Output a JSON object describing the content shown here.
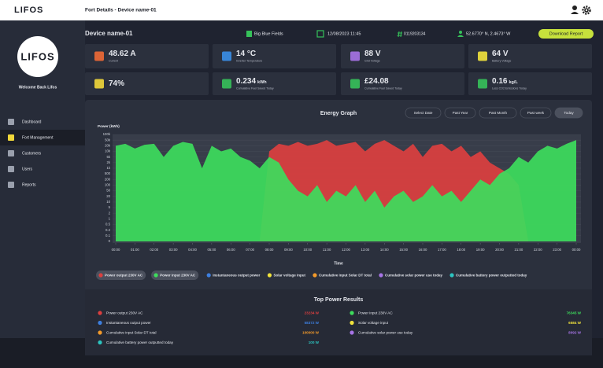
{
  "topbar": {
    "logo": "LIFOS",
    "title": "Fort Details - Device name-01"
  },
  "sidebar": {
    "logo": "LIFOS",
    "welcome": "Welcome Back Lifos",
    "menu": [
      "Dashboard",
      "Fort Management",
      "Customers",
      "Users",
      "Reports"
    ]
  },
  "header": {
    "device": "Device name-01",
    "site": "Big Blue Fields",
    "datetime": "12/08/2023 11:45",
    "serial": "0119203134",
    "location": "52.6770° N, 2.4673° W",
    "button": "Download Report"
  },
  "cards": [
    {
      "value": "48.62 A",
      "label": "Current"
    },
    {
      "value": "14 °C",
      "label": "Inverter Temperature"
    },
    {
      "value": "88 V",
      "label": "Grid Voltage"
    },
    {
      "value": "64 V",
      "label": "Battery Voltage"
    },
    {
      "value": "74%"
    },
    {
      "value": "0.234",
      "unit": "kWh",
      "label": "Cumulative Fuel Saved Today"
    },
    {
      "value": "£24.08",
      "label": "Cumulative Fuel Saved Today"
    },
    {
      "value": "0.16",
      "unit": "kg/L",
      "label": "Less CO2 Emissions Today"
    }
  ],
  "graph_controls": [
    "Select Date",
    "Past Year",
    "Past Month",
    "Past week",
    "Today"
  ],
  "chart_data": {
    "type": "area",
    "title": "Energy Graph",
    "y_label": "Power (kWh)",
    "x_label": "Time",
    "grid": true,
    "xlim": [
      0,
      24
    ],
    "xticks": [
      {
        "value": 0,
        "label": "00:00"
      },
      {
        "value": 1,
        "label": "01:00"
      },
      {
        "value": 2,
        "label": "02:00"
      },
      {
        "value": 3,
        "label": "03:00"
      },
      {
        "value": 4,
        "label": "04:00"
      },
      {
        "value": 5,
        "label": "05:00"
      },
      {
        "value": 6,
        "label": "06:00"
      },
      {
        "value": 7,
        "label": "07:00"
      },
      {
        "value": 8,
        "label": "08:00"
      },
      {
        "value": 9,
        "label": "09:00"
      },
      {
        "value": 10,
        "label": "10:00"
      },
      {
        "value": 11,
        "label": "11:00"
      },
      {
        "value": 12,
        "label": "12:00"
      },
      {
        "value": 13,
        "label": "13:00"
      },
      {
        "value": 14,
        "label": "14:00"
      },
      {
        "value": 15,
        "label": "15:00"
      },
      {
        "value": 16,
        "label": "16:00"
      },
      {
        "value": 17,
        "label": "17:00"
      },
      {
        "value": 18,
        "label": "18:00"
      },
      {
        "value": 19,
        "label": "19:00"
      },
      {
        "value": 20,
        "label": "20:00"
      },
      {
        "value": 21,
        "label": "21:00"
      },
      {
        "value": 22,
        "label": "22:00"
      },
      {
        "value": 23,
        "label": "23:00"
      },
      {
        "value": 24,
        "label": "00:00"
      }
    ],
    "ylim": [
      0,
      100000
    ],
    "yticks": [
      {
        "value": 100000,
        "label": "100k"
      },
      {
        "value": 50000,
        "label": "50k"
      },
      {
        "value": 20000,
        "label": "20k"
      },
      {
        "value": 10000,
        "label": "10k"
      },
      {
        "value": 5000,
        "label": "5k"
      },
      {
        "value": 2000,
        "label": "2k"
      },
      {
        "value": 1000,
        "label": "1k"
      },
      500,
      200,
      100,
      50,
      20,
      10,
      5,
      2,
      1,
      0.5,
      0.2,
      0.1,
      0
    ],
    "x": [
      0,
      0.5,
      1,
      1.5,
      2,
      2.5,
      3,
      3.5,
      4,
      4.5,
      5,
      5.5,
      6,
      6.5,
      7,
      7.5,
      8,
      8.5,
      9,
      9.5,
      10,
      10.5,
      11,
      11.5,
      12,
      12.5,
      13,
      13.5,
      14,
      14.5,
      15,
      15.5,
      16,
      16.5,
      17,
      17.5,
      18,
      18.5,
      19,
      19.5,
      20,
      20.5,
      21,
      21.5,
      22,
      22.5,
      23,
      23.5,
      24
    ],
    "series": [
      {
        "name": "Power output 230V AC",
        "color": "#dc3f3f",
        "selected": true,
        "values": [
          0,
          0,
          0,
          0,
          0,
          0,
          0,
          0,
          0,
          0,
          0,
          0,
          0,
          0,
          0,
          0,
          10000,
          30000,
          20000,
          40000,
          20000,
          30000,
          50000,
          20000,
          30000,
          40000,
          10000,
          30000,
          50000,
          20000,
          10000,
          30000,
          5000,
          20000,
          30000,
          10000,
          20000,
          5000,
          10000,
          2000,
          1000,
          500,
          100,
          0,
          0,
          0,
          0,
          0,
          0
        ]
      },
      {
        "name": "Power input 230V AC",
        "color": "#3ddc5c",
        "selected": true,
        "values": [
          20000,
          30000,
          15000,
          25000,
          30000,
          5000,
          20000,
          40000,
          30000,
          1000,
          20000,
          10000,
          15000,
          5000,
          3000,
          1000,
          5000,
          2000,
          200,
          50,
          20,
          100,
          10,
          50,
          20,
          100,
          10,
          50,
          5,
          20,
          50,
          10,
          20,
          100,
          20,
          50,
          10,
          50,
          200,
          100,
          500,
          1000,
          5000,
          2000,
          10000,
          20000,
          15000,
          30000,
          50000
        ]
      },
      {
        "name": "Instantaneous output power",
        "color": "#3d7fe0",
        "values": [
          null,
          null,
          null,
          null,
          null,
          null,
          null,
          null,
          null,
          null,
          null,
          null,
          null,
          null,
          null,
          null,
          null,
          null,
          null,
          null,
          null,
          null,
          null,
          null,
          null,
          null,
          null,
          null,
          null,
          null,
          null,
          null,
          null,
          null,
          null,
          null,
          null,
          null,
          null,
          null,
          null,
          null,
          null,
          null,
          null,
          null,
          null,
          null,
          null
        ]
      },
      {
        "name": "Solar voltage input",
        "color": "#f2e33c",
        "values": [
          null,
          null,
          null,
          null,
          null,
          null,
          null,
          null,
          null,
          null,
          null,
          null,
          null,
          null,
          null,
          null,
          null,
          null,
          null,
          null,
          null,
          null,
          null,
          null,
          null,
          null,
          null,
          null,
          null,
          null,
          null,
          null,
          null,
          null,
          null,
          null,
          null,
          null,
          null,
          null,
          null,
          null,
          null,
          null,
          null,
          null,
          null,
          null,
          null
        ]
      },
      {
        "name": "Cumulative input Solar DT total",
        "color": "#f39a2a",
        "values": [
          null,
          null,
          null,
          null,
          null,
          null,
          null,
          null,
          null,
          null,
          null,
          null,
          null,
          null,
          null,
          null,
          null,
          null,
          null,
          null,
          null,
          null,
          null,
          null,
          null,
          null,
          null,
          null,
          null,
          null,
          null,
          null,
          null,
          null,
          null,
          null,
          null,
          null,
          null,
          null,
          null,
          null,
          null,
          null,
          null,
          null,
          null,
          null,
          null
        ]
      },
      {
        "name": "Cumulative solar power use today",
        "color": "#a774e6",
        "values": [
          null,
          null,
          null,
          null,
          null,
          null,
          null,
          null,
          null,
          null,
          null,
          null,
          null,
          null,
          null,
          null,
          null,
          null,
          null,
          null,
          null,
          null,
          null,
          null,
          null,
          null,
          null,
          null,
          null,
          null,
          null,
          null,
          null,
          null,
          null,
          null,
          null,
          null,
          null,
          null,
          null,
          null,
          null,
          null,
          null,
          null,
          null,
          null,
          null
        ]
      },
      {
        "name": "Cumulative battery power outputted today",
        "color": "#2cc4c0",
        "values": [
          null,
          null,
          null,
          null,
          null,
          null,
          null,
          null,
          null,
          null,
          null,
          null,
          null,
          null,
          null,
          null,
          null,
          null,
          null,
          null,
          null,
          null,
          null,
          null,
          null,
          null,
          null,
          null,
          null,
          null,
          null,
          null,
          null,
          null,
          null,
          null,
          null,
          null,
          null,
          null,
          null,
          null,
          null,
          null,
          null,
          null,
          null,
          null,
          null
        ]
      }
    ]
  },
  "top_power_results": {
    "title": "Top Power Results",
    "items": [
      {
        "label": "Power output 230V AC",
        "value": "23234 W",
        "color": "#dc3f3f"
      },
      {
        "label": "Power input 230V AC",
        "value": "76345 W",
        "color": "#3ddc5c"
      },
      {
        "label": "Instantaneous output power",
        "value": "58372 W",
        "color": "#3d7fe0"
      },
      {
        "label": "Solar voltage input",
        "value": "6584 W",
        "color": "#f2e33c"
      },
      {
        "label": "Cumulative input Solar DT total",
        "value": "100000 W",
        "color": "#f39a2a"
      },
      {
        "label": "Cumulative solar power use today",
        "value": "8092 W",
        "color": "#a774e6"
      },
      {
        "label": "Cumulative battery power outputted today",
        "value": "100 W",
        "color": "#2cc4c0"
      }
    ]
  }
}
